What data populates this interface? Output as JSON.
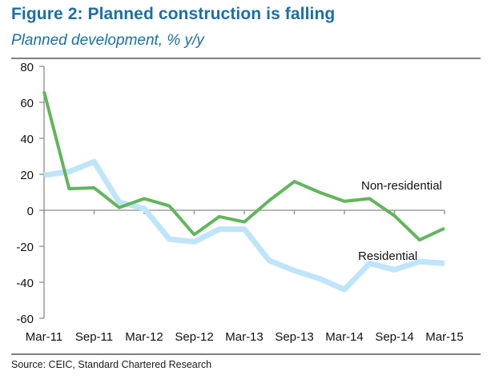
{
  "figure": {
    "title": "Figure 2: Planned construction is falling",
    "subtitle": "Planned development, % y/y",
    "source": "Source: CEIC, Standard Chartered Research"
  },
  "colors": {
    "title": "#1a6fa8",
    "non_residential": "#62b55c",
    "residential": "#bfe5fb",
    "axis": "#8c8c8c"
  },
  "chart_data": {
    "type": "line",
    "title": "Figure 2: Planned construction is falling",
    "subtitle": "Planned development, % y/y",
    "xlabel": "",
    "ylabel": "% y/y",
    "ylim": [
      -60,
      80
    ],
    "yticks": [
      80,
      60,
      40,
      20,
      0,
      -20,
      -40,
      -60
    ],
    "x": [
      "Mar-11",
      "Jun-11",
      "Sep-11",
      "Dec-11",
      "Mar-12",
      "Jun-12",
      "Sep-12",
      "Dec-12",
      "Mar-13",
      "Jun-13",
      "Sep-13",
      "Dec-13",
      "Mar-14",
      "Jun-14",
      "Sep-14",
      "Dec-14",
      "Mar-15"
    ],
    "xtick_labels": [
      "Mar-11",
      "Sep-11",
      "Mar-12",
      "Sep-12",
      "Mar-13",
      "Sep-13",
      "Mar-14",
      "Sep-14",
      "Mar-15"
    ],
    "grid": false,
    "legend": "inline labels (right)",
    "series": [
      {
        "name": "Non-residential",
        "values": [
          66,
          12,
          12.5,
          1.5,
          6.5,
          2.5,
          -13.5,
          -3.5,
          -6.5,
          5.5,
          16,
          10,
          5,
          6.5,
          -3,
          -16.5,
          -10
        ]
      },
      {
        "name": "Residential",
        "values": [
          19.5,
          21.5,
          27,
          4.5,
          1,
          -16,
          -17.5,
          -10.5,
          -10.5,
          -28,
          -33.5,
          -38,
          -44,
          -29.5,
          -33,
          -28.5,
          -29.5
        ]
      }
    ]
  }
}
